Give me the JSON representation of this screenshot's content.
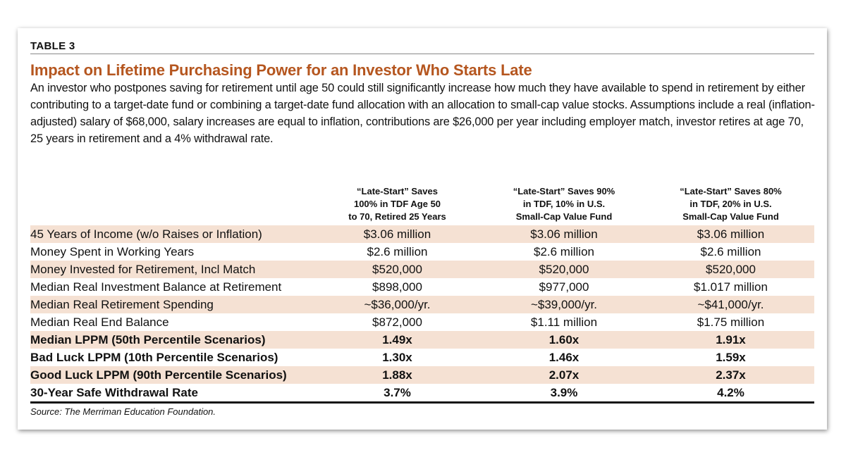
{
  "label": "TABLE 3",
  "title": "Impact on Lifetime Purchasing Power for an Investor Who Starts Late",
  "description": "An investor who postpones saving for retirement until age 50 could still significantly increase how much they have available to spend in retirement by either contributing to a target-date fund or combining a target-date fund allocation with an allocation to small-cap value stocks. Assumptions include a real (inflation-adjusted) salary of $68,000, salary increases are equal to inflation, contributions are $26,000 per year including employer match, investor retires at age 70, 25 years in retirement and a 4% withdrawal rate.",
  "table": {
    "headers": [
      [
        "“Late-Start” Saves",
        "100% in TDF Age 50",
        "to 70, Retired 25 Years"
      ],
      [
        "“Late-Start” Saves 90%",
        "in TDF, 10% in U.S.",
        "Small-Cap Value Fund"
      ],
      [
        "“Late-Start” Saves 80%",
        "in TDF, 20% in U.S.",
        "Small-Cap Value Fund"
      ]
    ],
    "rows": [
      [
        "45 Years of Income (w/o Raises or Inflation)",
        "$3.06 million",
        "$3.06 million",
        "$3.06 million"
      ],
      [
        "Money Spent in Working Years",
        "$2.6 million",
        "$2.6 million",
        "$2.6 million"
      ],
      [
        "Money Invested for Retirement, Incl Match",
        "$520,000",
        "$520,000",
        "$520,000"
      ],
      [
        "Median Real Investment Balance at Retirement",
        "$898,000",
        "$977,000",
        "$1.017 million"
      ],
      [
        "Median Real Retirement Spending",
        "~$36,000/yr.",
        "~$39,000/yr.",
        "~$41,000/yr."
      ],
      [
        "Median Real End Balance",
        "$872,000",
        "$1.11 million",
        "$1.75 million"
      ],
      [
        "Median LPPM (50th Percentile Scenarios)",
        "1.49x",
        "1.60x",
        "1.91x"
      ],
      [
        "Bad Luck LPPM (10th Percentile Scenarios)",
        "1.30x",
        "1.46x",
        "1.59x"
      ],
      [
        "Good Luck LPPM (90th Percentile Scenarios)",
        "1.88x",
        "2.07x",
        "2.37x"
      ],
      [
        "30-Year Safe Withdrawal Rate",
        "3.7%",
        "3.9%",
        "4.2%"
      ]
    ]
  },
  "source": "Source: The Merriman Education Foundation."
}
